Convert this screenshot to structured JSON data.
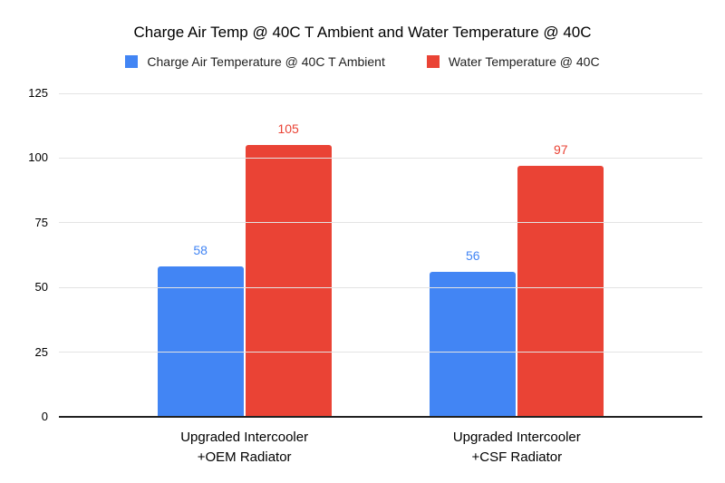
{
  "chart_data": {
    "type": "bar",
    "title": "Charge Air Temp @ 40C T Ambient and Water Temperature @ 40C",
    "categories": [
      "Upgraded Intercooler\n+OEM Radiator",
      "Upgraded Intercooler\n+CSF Radiator"
    ],
    "series": [
      {
        "name": "Charge Air Temperature @ 40C T Ambient",
        "color": "#4285F4",
        "values": [
          58,
          56
        ]
      },
      {
        "name": "Water Temperature @ 40C",
        "color": "#EA4335",
        "values": [
          105,
          97
        ]
      }
    ],
    "xlabel": "",
    "ylabel": "",
    "ylim": [
      0,
      125
    ],
    "yticks": [
      0,
      25,
      50,
      75,
      100,
      125
    ],
    "grid": true,
    "legend_position": "top",
    "data_labels": true,
    "background_color": "#ffffff",
    "gridline_color": "#e3e3e3",
    "axis_line_color": "#212121",
    "text_color": "#000000"
  }
}
